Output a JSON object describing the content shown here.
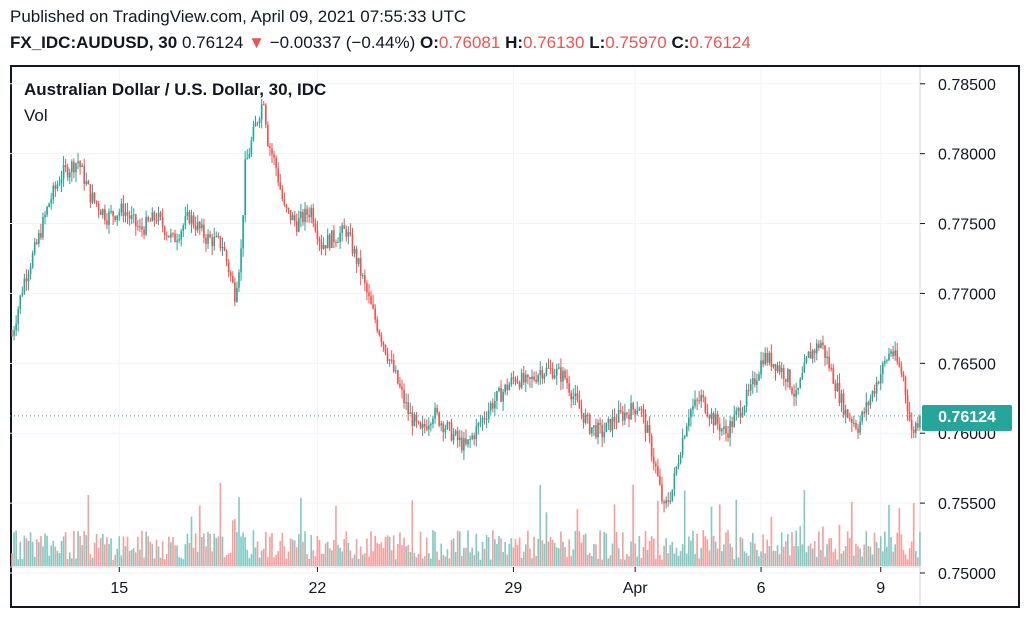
{
  "header": {
    "published": "Published on TradingView.com, April 09, 2021 07:55:33 UTC",
    "symbol": "FX_IDC:AUDUSD, 30",
    "last": "0.76124",
    "arrow": "▼",
    "change": "−0.00337 (−0.44%)",
    "o_label": "O:",
    "o": "0.76081",
    "h_label": "H:",
    "h": "0.76130",
    "l_label": "L:",
    "l": "0.75970",
    "c_label": "C:",
    "c": "0.76124"
  },
  "colors": {
    "up": "#26a69a",
    "down": "#ef5350",
    "upVol": "#84c9c2",
    "downVol": "#f4a09e",
    "grid": "#f0f3fa"
  },
  "chart_data": {
    "type": "candlestick",
    "title": "Australian Dollar / U.S. Dollar, 30, IDC",
    "volume_label": "Vol",
    "y_ticks": [
      "0.78500",
      "0.78000",
      "0.77500",
      "0.77000",
      "0.76500",
      "0.76000",
      "0.75500",
      "0.75000"
    ],
    "y_tick_values": [
      0.785,
      0.78,
      0.775,
      0.77,
      0.765,
      0.76,
      0.755,
      0.75
    ],
    "x_ticks": [
      "15",
      "22",
      "29",
      "Apr",
      "6",
      "9"
    ],
    "x_tick_bar_index": [
      52,
      148,
      243,
      302,
      363,
      421
    ],
    "ylim": [
      0.7505,
      0.7862
    ],
    "last_price": 0.76124,
    "last_price_label": "0.76124",
    "path_knots": [
      [
        0,
        0.767
      ],
      [
        6,
        0.771
      ],
      [
        12,
        0.7735
      ],
      [
        18,
        0.7765
      ],
      [
        24,
        0.7785
      ],
      [
        32,
        0.7795
      ],
      [
        38,
        0.777
      ],
      [
        46,
        0.7755
      ],
      [
        54,
        0.776
      ],
      [
        62,
        0.7745
      ],
      [
        70,
        0.7755
      ],
      [
        78,
        0.7738
      ],
      [
        86,
        0.7755
      ],
      [
        94,
        0.774
      ],
      [
        102,
        0.7735
      ],
      [
        108,
        0.77
      ],
      [
        111,
        0.773
      ],
      [
        113,
        0.779
      ],
      [
        118,
        0.782
      ],
      [
        122,
        0.784
      ],
      [
        124,
        0.781
      ],
      [
        128,
        0.779
      ],
      [
        132,
        0.776
      ],
      [
        138,
        0.775
      ],
      [
        145,
        0.776
      ],
      [
        150,
        0.7735
      ],
      [
        156,
        0.774
      ],
      [
        162,
        0.7745
      ],
      [
        168,
        0.772
      ],
      [
        174,
        0.769
      ],
      [
        180,
        0.7665
      ],
      [
        186,
        0.764
      ],
      [
        192,
        0.7615
      ],
      [
        198,
        0.76
      ],
      [
        204,
        0.7615
      ],
      [
        210,
        0.7605
      ],
      [
        216,
        0.7595
      ],
      [
        220,
        0.759
      ],
      [
        226,
        0.7605
      ],
      [
        232,
        0.762
      ],
      [
        238,
        0.763
      ],
      [
        244,
        0.764
      ],
      [
        250,
        0.7635
      ],
      [
        256,
        0.7645
      ],
      [
        262,
        0.7645
      ],
      [
        268,
        0.764
      ],
      [
        274,
        0.762
      ],
      [
        280,
        0.7605
      ],
      [
        286,
        0.76
      ],
      [
        292,
        0.761
      ],
      [
        298,
        0.7615
      ],
      [
        304,
        0.762
      ],
      [
        308,
        0.76
      ],
      [
        312,
        0.7575
      ],
      [
        316,
        0.7545
      ],
      [
        320,
        0.756
      ],
      [
        324,
        0.759
      ],
      [
        328,
        0.7615
      ],
      [
        334,
        0.7625
      ],
      [
        340,
        0.761
      ],
      [
        346,
        0.76
      ],
      [
        352,
        0.7615
      ],
      [
        358,
        0.763
      ],
      [
        364,
        0.7655
      ],
      [
        370,
        0.765
      ],
      [
        376,
        0.764
      ],
      [
        380,
        0.7625
      ],
      [
        386,
        0.7655
      ],
      [
        392,
        0.7665
      ],
      [
        398,
        0.764
      ],
      [
        404,
        0.7615
      ],
      [
        410,
        0.7605
      ],
      [
        416,
        0.7625
      ],
      [
        420,
        0.764
      ],
      [
        426,
        0.766
      ],
      [
        432,
        0.764
      ],
      [
        436,
        0.76
      ],
      [
        440,
        0.7612
      ]
    ]
  }
}
